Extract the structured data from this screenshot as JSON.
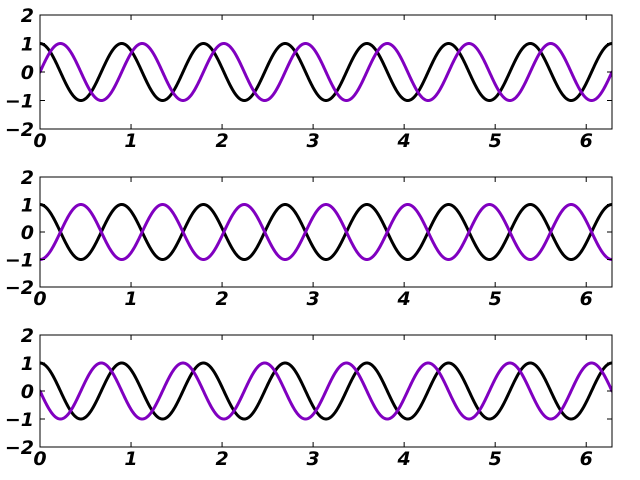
{
  "chart_data": [
    {
      "type": "line",
      "xlim": [
        0,
        6.2832
      ],
      "ylim": [
        -2,
        2
      ],
      "xticks": [
        "0",
        "1",
        "2",
        "3",
        "4",
        "5",
        "6"
      ],
      "yticks": [
        "2",
        "1",
        "0",
        "−1",
        "−2"
      ],
      "grid": false,
      "series": [
        {
          "color": "#000000",
          "function": "cos",
          "angular_frequency": 7,
          "phase": 0,
          "amplitude": 1
        },
        {
          "color": "#8000c0",
          "function": "sin",
          "angular_frequency": 7,
          "phase": 0,
          "amplitude": 1
        }
      ]
    },
    {
      "type": "line",
      "xlim": [
        0,
        6.2832
      ],
      "ylim": [
        -2,
        2
      ],
      "xticks": [
        "0",
        "1",
        "2",
        "3",
        "4",
        "5",
        "6"
      ],
      "yticks": [
        "2",
        "1",
        "0",
        "−1",
        "−2"
      ],
      "grid": false,
      "series": [
        {
          "color": "#000000",
          "function": "cos",
          "angular_frequency": 7,
          "phase": 0,
          "amplitude": 1
        },
        {
          "color": "#8000c0",
          "function": "cos",
          "angular_frequency": 7,
          "phase": 3.1416,
          "amplitude": 1
        }
      ]
    },
    {
      "type": "line",
      "xlim": [
        0,
        6.2832
      ],
      "ylim": [
        -2,
        2
      ],
      "xticks": [
        "0",
        "1",
        "2",
        "3",
        "4",
        "5",
        "6"
      ],
      "yticks": [
        "2",
        "1",
        "0",
        "−1",
        "−2"
      ],
      "grid": false,
      "series": [
        {
          "color": "#000000",
          "function": "cos",
          "angular_frequency": 7,
          "phase": 0,
          "amplitude": 1
        },
        {
          "color": "#8000c0",
          "function": "sin",
          "angular_frequency": 7,
          "phase": 3.1416,
          "amplitude": 1
        }
      ]
    }
  ]
}
